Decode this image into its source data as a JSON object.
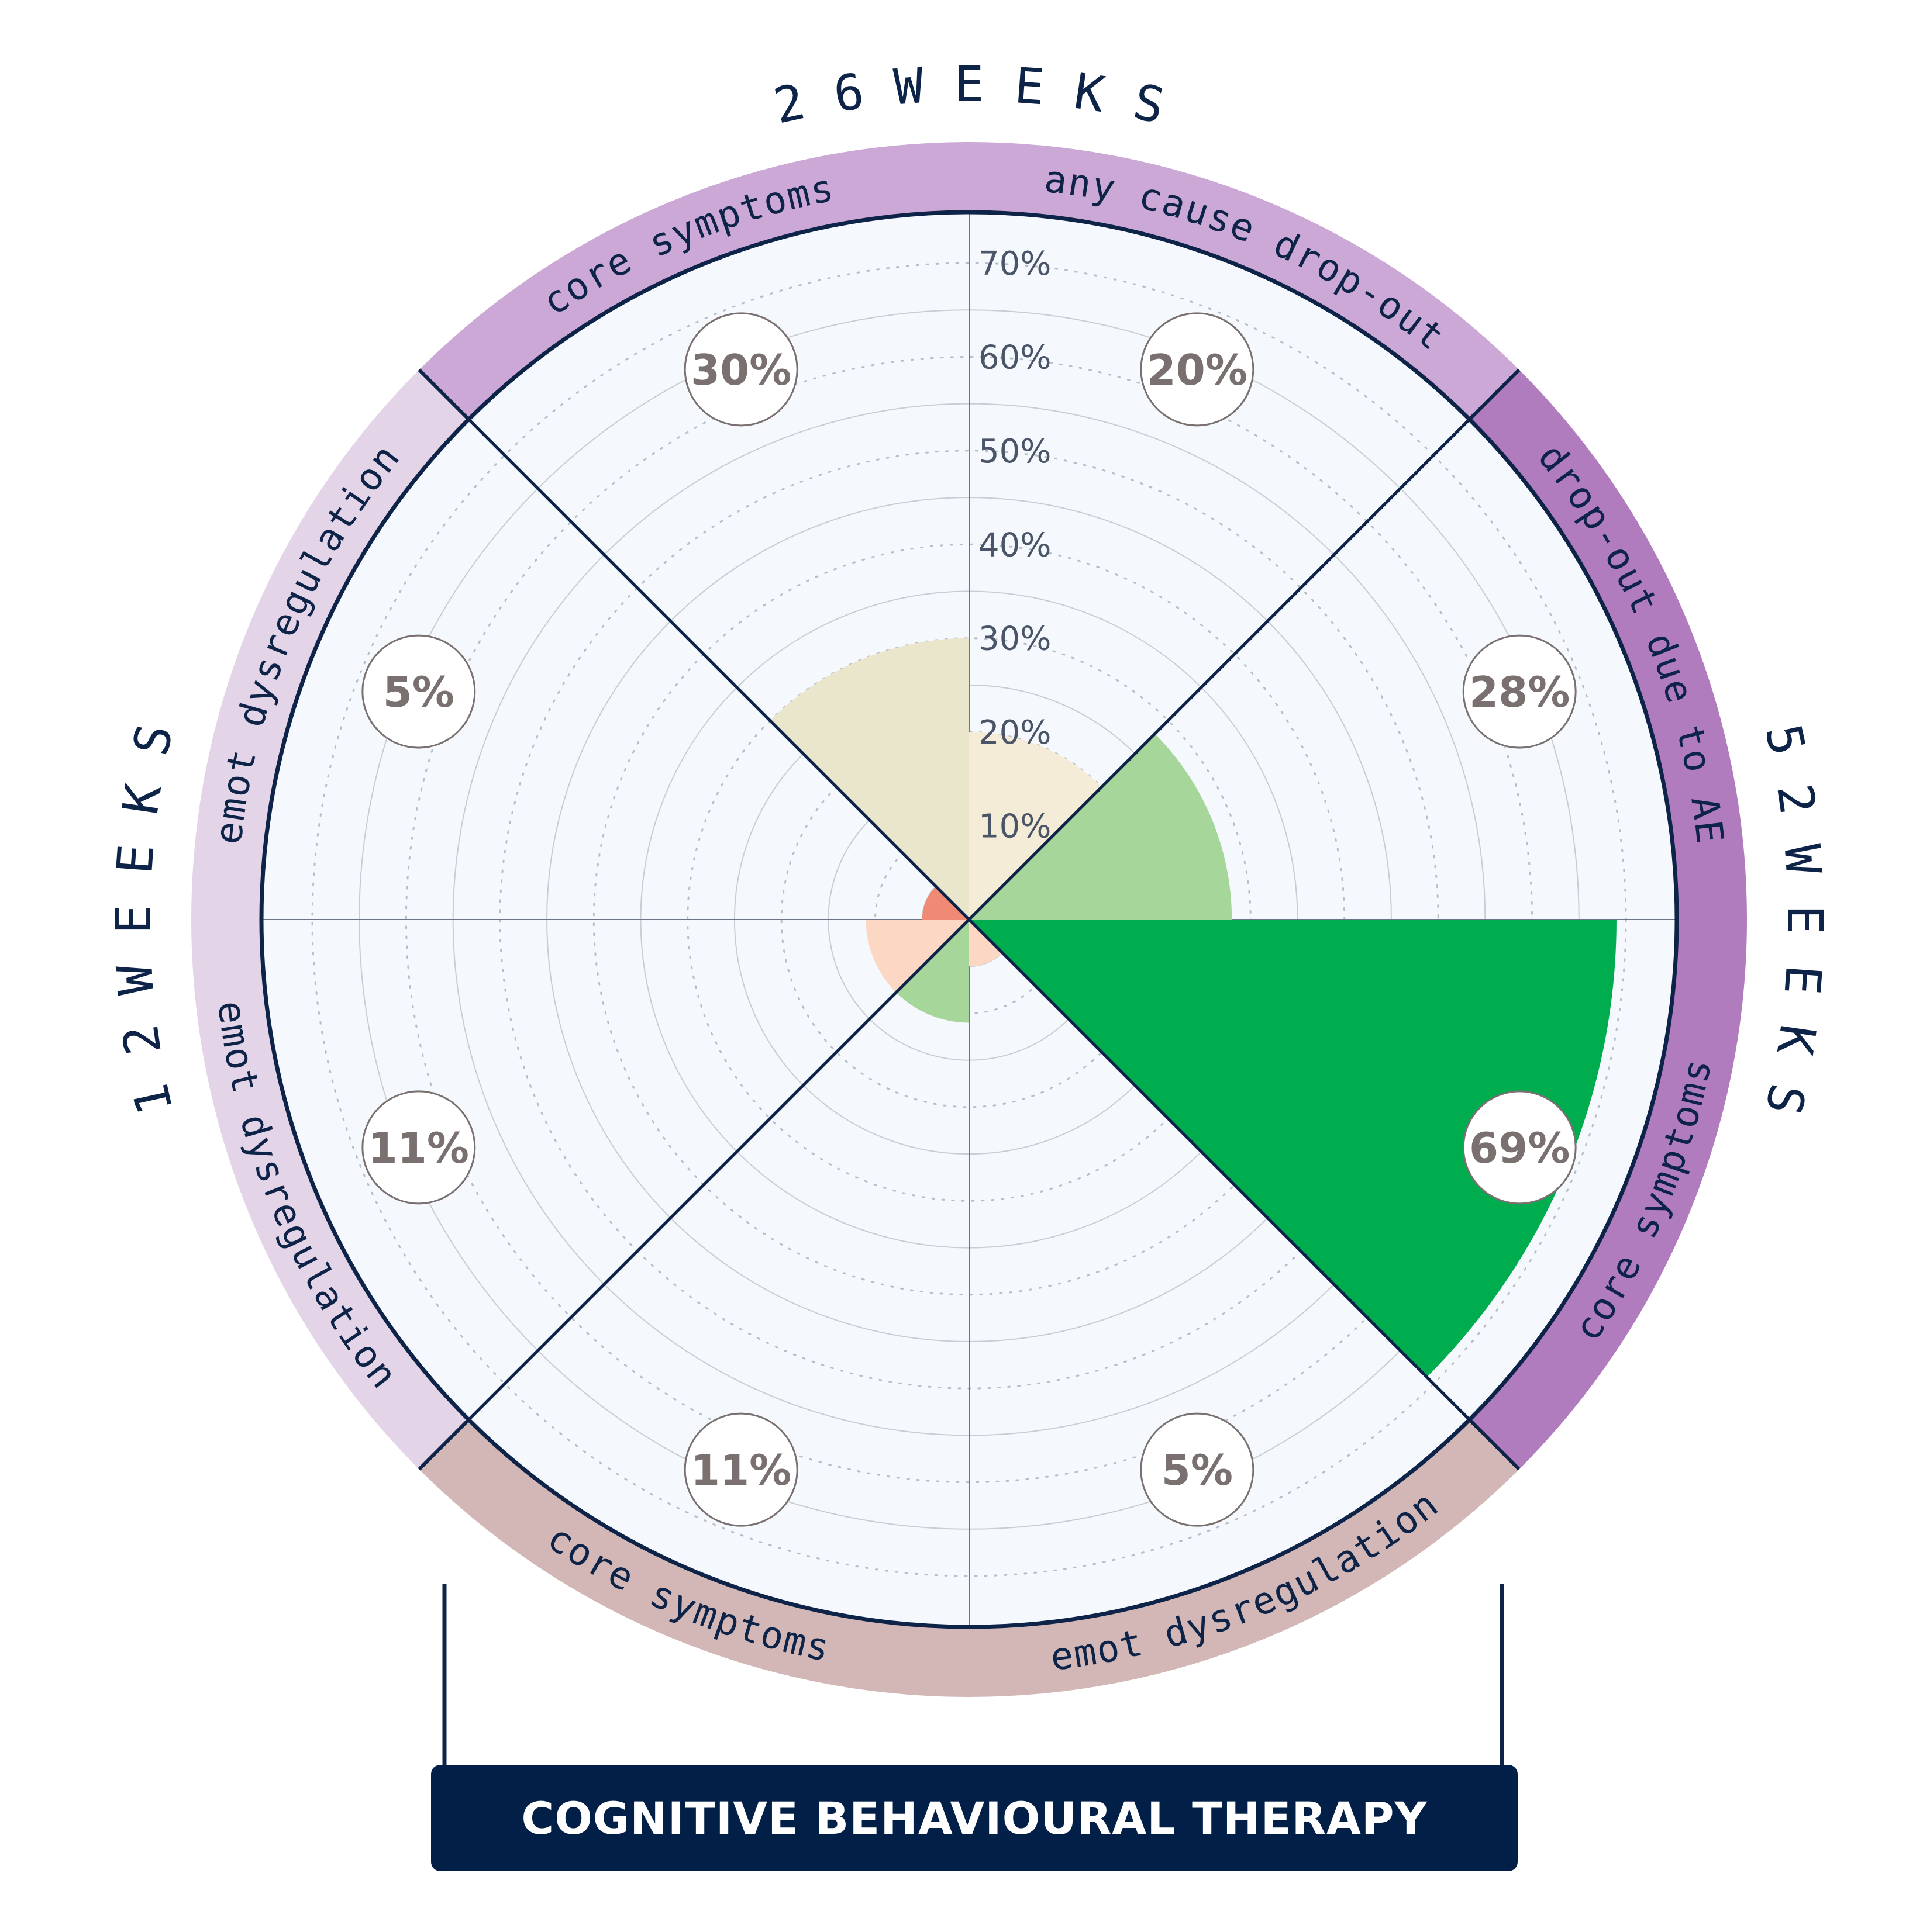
{
  "chart_data": {
    "type": "polar-area",
    "radial_axis": {
      "ticks": [
        "10%",
        "20%",
        "30%",
        "40%",
        "50%",
        "60%",
        "70%"
      ],
      "values": [
        10,
        20,
        30,
        40,
        50,
        60,
        70
      ],
      "max": 70,
      "grid": true
    },
    "periods": [
      {
        "label": "1 2   W E E K S",
        "key": "12w"
      },
      {
        "label": "2 6   W E E K S",
        "key": "26w"
      },
      {
        "label": "5 2   W E E K S",
        "key": "52w"
      }
    ],
    "sectors": [
      {
        "outcome": "core symptoms",
        "period": "12w",
        "value": 5,
        "label": "5%",
        "fill": "#f08a75"
      },
      {
        "outcome": "emot dysregulation",
        "period": "12w",
        "value": 11,
        "label": "11%",
        "fill": "#fcd7c4"
      },
      {
        "outcome": "emot dysregulation",
        "period": "26w",
        "value": 30,
        "label": "30%",
        "fill": "#e9e6cc"
      },
      {
        "outcome": "core symptoms",
        "period": "26w",
        "value": 20,
        "label": "20%",
        "fill": "#f4ecd6"
      },
      {
        "outcome": "emot dysregulation",
        "period": "52w",
        "value": 28,
        "label": "28%",
        "fill": "#a7d69a"
      },
      {
        "outcome": "core symptoms",
        "period": "52w",
        "value": 69,
        "label": "69%",
        "fill": "#00ad4e"
      },
      {
        "outcome": "drop-out due to AE",
        "period": "",
        "value": 5,
        "label": "5%",
        "fill": "#fcd7c4"
      },
      {
        "outcome": "any cause drop-out",
        "period": "",
        "value": 11,
        "label": "11%",
        "fill": "#a7d69a"
      }
    ]
  },
  "ring_labels": {
    "s0": "core symptoms",
    "s1": "emot dysregulation",
    "s2": "emot dysregulation",
    "s3": "core symptoms",
    "s4": "emot dysregulation",
    "s5": "core symptoms",
    "s6": "drop-out due to AE",
    "s7": "any cause drop-out"
  },
  "period_labels": {
    "left": "1 2   W E E K S",
    "top": "2 6   W E E K S",
    "right": "5 2   W E E K S"
  },
  "band_colors": {
    "12w": "#e4d4e8",
    "26w": "#cba8d5",
    "52w": "#b17cbe",
    "dropout": "#d3b7b6"
  },
  "footer": {
    "title": "COGNITIVE BEHAVIOURAL THERAPY"
  }
}
